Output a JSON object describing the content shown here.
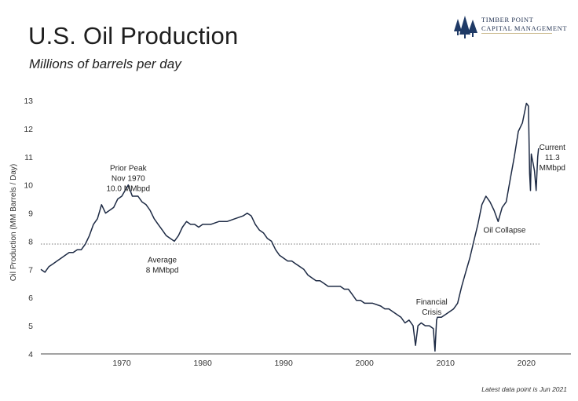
{
  "header": {
    "title": "U.S. Oil Production",
    "subtitle": "Millions of barrels per day"
  },
  "logo": {
    "line1": "TIMBER POINT",
    "line2": "CAPITAL MANAGEMENT",
    "icon": "pine-trees-icon",
    "color": "#1f3a66"
  },
  "footnote": "Latest data point is Jun 2021",
  "chart_data": {
    "type": "line",
    "title": "U.S. Oil Production",
    "subtitle": "Millions of barrels per day",
    "xlabel": "",
    "ylabel": "Oil Production (MM Barrels / Day)",
    "xlim": [
      1960,
      2025.5
    ],
    "ylim": [
      4,
      13
    ],
    "xticks": [
      1970,
      1980,
      1990,
      2000,
      2010,
      2020
    ],
    "yticks": [
      4,
      5,
      6,
      7,
      8,
      9,
      10,
      11,
      12,
      13
    ],
    "grid": false,
    "line_color": "#1d2a44",
    "reference_line": {
      "y": 7.9,
      "style": "dotted",
      "color": "#777777"
    },
    "annotations": [
      {
        "lines": [
          "Prior Peak",
          "Nov 1970",
          "10.0 MMbpd"
        ],
        "x": 1970.8,
        "y": 10.5
      },
      {
        "lines": [
          "Average",
          "8 MMbpd"
        ],
        "x": 1975,
        "y": 7.25
      },
      {
        "lines": [
          "Financial",
          "Crisis"
        ],
        "x": 2008.3,
        "y": 5.75
      },
      {
        "lines": [
          "Oil Collapse"
        ],
        "x": 2017.3,
        "y": 8.3
      },
      {
        "lines": [
          "Current",
          "11.3",
          "MMbpd"
        ],
        "x": 2023.2,
        "y": 11.25
      }
    ],
    "series": [
      {
        "x": [
          1960,
          1960.5,
          1961,
          1961.5,
          1962,
          1962.5,
          1963,
          1963.5,
          1964,
          1964.5,
          1965,
          1965.5,
          1966,
          1966.5,
          1967,
          1967.5,
          1968,
          1968.5,
          1969,
          1969.5,
          1970,
          1970.8,
          1971.3,
          1972,
          1972.5,
          1973,
          1973.5,
          1974,
          1974.5,
          1975,
          1975.5,
          1976,
          1976.5,
          1977,
          1977.5,
          1978,
          1978.5,
          1979,
          1979.5,
          1980,
          1980.5,
          1981,
          1982,
          1983,
          1984,
          1985,
          1985.5,
          1986,
          1986.5,
          1987,
          1987.5,
          1988,
          1988.5,
          1989,
          1989.5,
          1990,
          1990.5,
          1991,
          1991.5,
          1992,
          1992.5,
          1993,
          1993.5,
          1994,
          1994.5,
          1995,
          1995.5,
          1996,
          1996.5,
          1997,
          1997.5,
          1998,
          1998.5,
          1999,
          1999.5,
          2000,
          2001,
          2002,
          2002.5,
          2003,
          2003.5,
          2004,
          2004.5,
          2005,
          2005.5,
          2006,
          2006.3,
          2006.6,
          2007,
          2007.5,
          2008,
          2008.5,
          2008.7,
          2008.9,
          2009,
          2009.5,
          2010,
          2010.5,
          2011,
          2011.5,
          2012,
          2012.5,
          2013,
          2013.5,
          2014,
          2014.5,
          2015,
          2015.5,
          2016,
          2016.5,
          2017,
          2017.5,
          2018,
          2018.5,
          2019,
          2019.5,
          2020,
          2020.25,
          2020.4,
          2020.5,
          2020.6,
          2020.8,
          2021,
          2021.2,
          2021.4,
          2021.5
        ],
        "y": [
          7.0,
          6.9,
          7.1,
          7.2,
          7.3,
          7.4,
          7.5,
          7.6,
          7.6,
          7.7,
          7.7,
          7.9,
          8.2,
          8.6,
          8.8,
          9.3,
          9.0,
          9.1,
          9.2,
          9.5,
          9.6,
          10.0,
          9.6,
          9.6,
          9.4,
          9.3,
          9.1,
          8.8,
          8.6,
          8.4,
          8.2,
          8.1,
          8.0,
          8.2,
          8.5,
          8.7,
          8.6,
          8.6,
          8.5,
          8.6,
          8.6,
          8.6,
          8.7,
          8.7,
          8.8,
          8.9,
          9.0,
          8.9,
          8.6,
          8.4,
          8.3,
          8.1,
          8.0,
          7.7,
          7.5,
          7.4,
          7.3,
          7.3,
          7.2,
          7.1,
          7.0,
          6.8,
          6.7,
          6.6,
          6.6,
          6.5,
          6.4,
          6.4,
          6.4,
          6.4,
          6.3,
          6.3,
          6.1,
          5.9,
          5.9,
          5.8,
          5.8,
          5.7,
          5.6,
          5.6,
          5.5,
          5.4,
          5.3,
          5.1,
          5.2,
          5.0,
          4.3,
          5.0,
          5.1,
          5.0,
          5.0,
          4.9,
          4.1,
          5.2,
          5.3,
          5.3,
          5.4,
          5.5,
          5.6,
          5.8,
          6.4,
          6.9,
          7.4,
          8.0,
          8.6,
          9.3,
          9.6,
          9.4,
          9.1,
          8.7,
          9.2,
          9.4,
          10.2,
          11.0,
          11.9,
          12.2,
          12.9,
          12.8,
          10.4,
          9.8,
          11.1,
          10.8,
          10.5,
          9.8,
          11.0,
          11.3
        ]
      }
    ]
  }
}
